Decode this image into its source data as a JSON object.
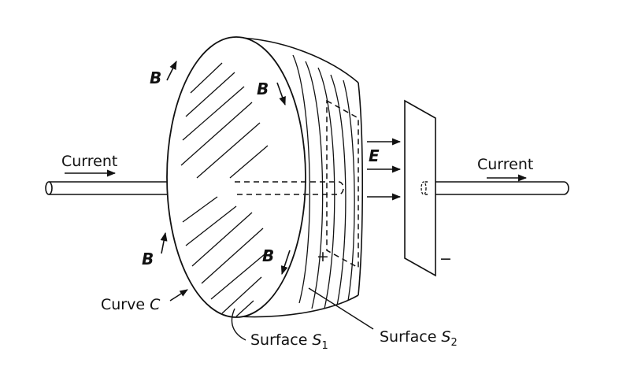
{
  "labels": {
    "current_left": "Current",
    "current_right": "Current",
    "b_top_left": "B",
    "b_top_center": "B",
    "b_bottom_left": "B",
    "b_bottom_center": "B",
    "e_field": "E",
    "plus_sign": "+",
    "minus_sign": "−",
    "curve_c_prefix": "Curve ",
    "curve_c_symbol": "C",
    "surface_s1_prefix": "Surface ",
    "surface_s1_symbol": "S",
    "surface_s1_subscript": "1",
    "surface_s2_prefix": "Surface ",
    "surface_s2_symbol": "S",
    "surface_s2_subscript": "2"
  },
  "colors": {
    "ink": "#111111",
    "background": "#ffffff"
  }
}
